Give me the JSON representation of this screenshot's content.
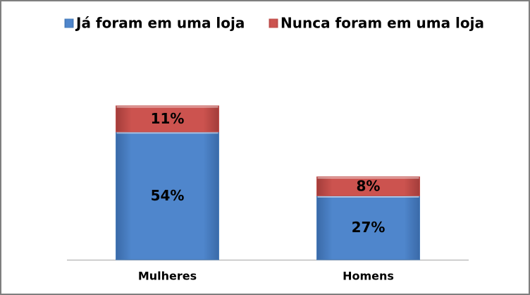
{
  "chart_data": {
    "type": "stacked_bar",
    "categories": [
      "Mulheres",
      "Homens"
    ],
    "series": [
      {
        "name": "Já foram em uma loja",
        "color": "#4a7ebb",
        "values": [
          54,
          27
        ],
        "value_labels": [
          "54%",
          "27%"
        ]
      },
      {
        "name": "Nunca foram em uma loja",
        "color": "#c0504d",
        "values": [
          11,
          8
        ],
        "value_labels": [
          "11%",
          "8%"
        ]
      }
    ],
    "legend": "top"
  }
}
